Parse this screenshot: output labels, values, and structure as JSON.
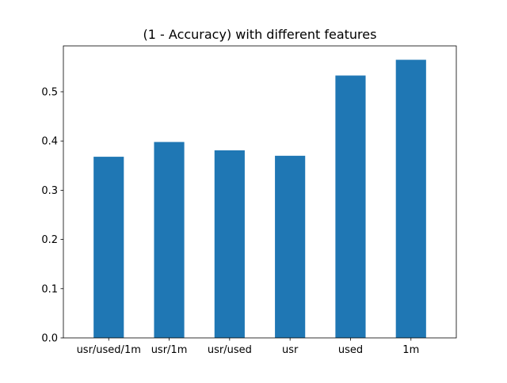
{
  "chart_data": {
    "type": "bar",
    "title": "(1 - Accuracy) with different features",
    "xlabel": "",
    "ylabel": "",
    "categories": [
      "usr/used/1m",
      "usr/1m",
      "usr/used",
      "usr",
      "used",
      "1m"
    ],
    "values": [
      0.368,
      0.398,
      0.381,
      0.37,
      0.533,
      0.565
    ],
    "ylim": [
      0,
      0.5932
    ],
    "yticks": [
      0.0,
      0.1,
      0.2,
      0.3,
      0.4,
      0.5
    ],
    "ytick_labels": [
      "0.0",
      "0.1",
      "0.2",
      "0.3",
      "0.4",
      "0.5"
    ],
    "grid": false,
    "legend": "none",
    "bar_color": "#1f77b4"
  }
}
